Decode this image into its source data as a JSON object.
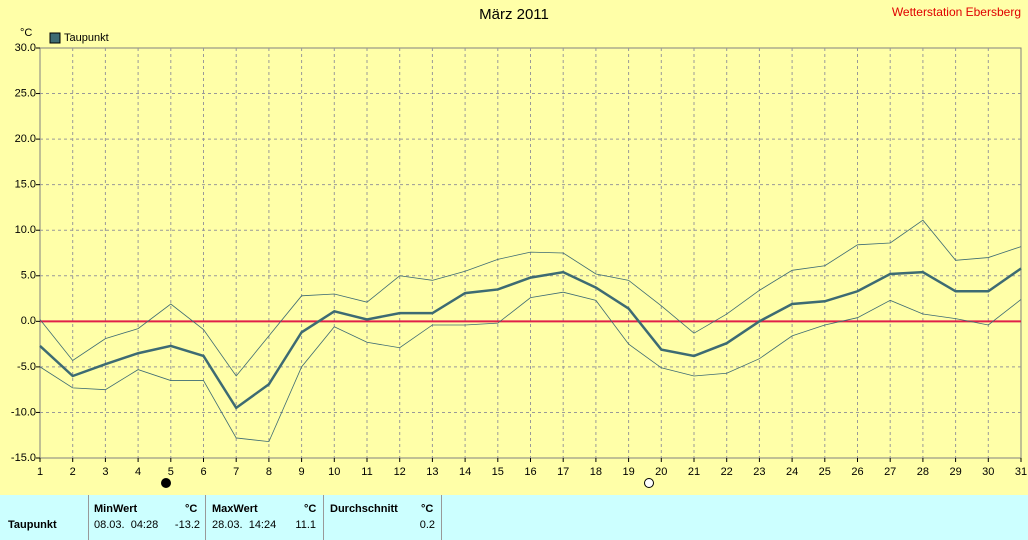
{
  "chart_data": {
    "type": "line",
    "title": "März 2011",
    "station": "Wetterstation Ebersberg",
    "y_unit": "°C",
    "x": [
      1,
      2,
      3,
      4,
      5,
      6,
      7,
      8,
      9,
      10,
      11,
      12,
      13,
      14,
      15,
      16,
      17,
      18,
      19,
      20,
      21,
      22,
      23,
      24,
      25,
      26,
      27,
      28,
      29,
      30,
      31
    ],
    "xlim": [
      1,
      31
    ],
    "xticks": [
      1,
      2,
      3,
      4,
      5,
      6,
      7,
      8,
      9,
      10,
      11,
      12,
      13,
      14,
      15,
      16,
      17,
      18,
      19,
      20,
      21,
      22,
      23,
      24,
      25,
      26,
      27,
      28,
      29,
      30,
      31
    ],
    "ylim": [
      -15,
      30
    ],
    "yticks": [
      {
        "value": -15,
        "label": "-15.0"
      },
      {
        "value": -10,
        "label": "-10.0"
      },
      {
        "value": -5,
        "label": "-5.0"
      },
      {
        "value": 0,
        "label": "0.0"
      },
      {
        "value": 5,
        "label": "5.0"
      },
      {
        "value": 10,
        "label": "10.0"
      },
      {
        "value": 15,
        "label": "15.0"
      },
      {
        "value": 20,
        "label": "20.0"
      },
      {
        "value": 25,
        "label": "25.0"
      },
      {
        "value": 30,
        "label": "30.0"
      }
    ],
    "grid": true,
    "series": [
      {
        "name": "Taupunkt",
        "color": "#3d6b73",
        "width": 2.5,
        "values": [
          -2.7,
          -6.0,
          -4.7,
          -3.5,
          -2.7,
          -3.8,
          -9.5,
          -6.9,
          -1.2,
          1.1,
          0.2,
          0.9,
          0.9,
          3.1,
          3.5,
          4.8,
          5.4,
          3.7,
          1.4,
          -3.1,
          -3.8,
          -2.4,
          0.0,
          1.9,
          2.2,
          3.3,
          5.2,
          5.4,
          3.3,
          3.3,
          5.8
        ]
      },
      {
        "color": "#3d6b73",
        "width": 0.8,
        "values": [
          0.2,
          -4.3,
          -1.9,
          -0.8,
          1.9,
          -0.9,
          -6.0,
          -1.6,
          2.8,
          3.0,
          2.1,
          5.0,
          4.5,
          5.5,
          6.8,
          7.6,
          7.5,
          5.2,
          4.5,
          1.7,
          -1.3,
          0.8,
          3.4,
          5.6,
          6.1,
          8.4,
          8.6,
          11.1,
          6.7,
          7.0,
          8.2
        ]
      },
      {
        "color": "#3d6b73",
        "width": 0.8,
        "values": [
          -5.0,
          -7.3,
          -7.5,
          -5.3,
          -6.5,
          -6.5,
          -12.8,
          -13.2,
          -5.0,
          -0.6,
          -2.3,
          -2.9,
          -0.4,
          -0.4,
          -0.2,
          2.6,
          3.2,
          2.3,
          -2.5,
          -5.1,
          -6.0,
          -5.7,
          -4.1,
          -1.6,
          -0.4,
          0.4,
          2.3,
          0.8,
          0.3,
          -0.4,
          2.4
        ]
      }
    ],
    "zero_line_color": "#e0204a"
  },
  "table": {
    "header": [
      "MinWert",
      "°C",
      "MaxWert",
      "°C",
      "Durchschnitt",
      "°C"
    ],
    "rows": [
      [
        "Taupunkt",
        "08.03.  04:28",
        "-13.2",
        "28.03.  14:24",
        "11.1",
        "0.2"
      ]
    ]
  }
}
